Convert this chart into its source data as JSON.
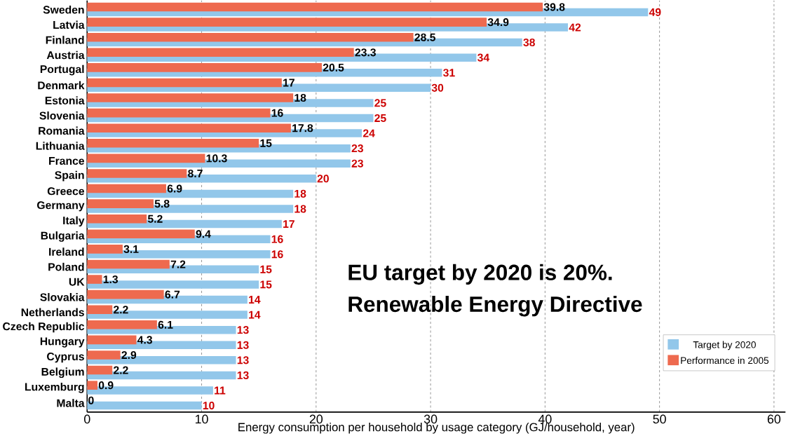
{
  "chart_data": {
    "type": "bar",
    "orientation": "horizontal",
    "title": "EU target by 2020 is 20%.",
    "subtitle": "Renewable Energy Directive",
    "xlabel": "Energy consumption per household by usage category (GJ/household, year)",
    "categories": [
      "Sweden",
      "Latvia",
      "Finland",
      "Austria",
      "Portugal",
      "Denmark",
      "Estonia",
      "Slovenia",
      "Romania",
      "Lithuania",
      "France",
      "Spain",
      "Greece",
      "Germany",
      "Italy",
      "Bulgaria",
      "Ireland",
      "Poland",
      "UK",
      "Slovakia",
      "Netherlands",
      "Czech Republic",
      "Hungary",
      "Cyprus",
      "Belgium",
      "Luxemburg",
      "Malta"
    ],
    "series": [
      {
        "name": "Performance in 2005",
        "color": "#ee6a4f",
        "values": [
          39.8,
          34.9,
          28.5,
          23.3,
          20.5,
          17,
          18,
          16,
          17.8,
          15,
          10.3,
          8.7,
          6.9,
          5.8,
          5.2,
          9.4,
          3.1,
          7.2,
          1.3,
          6.7,
          2.2,
          6.1,
          4.3,
          2.9,
          2.2,
          0.9,
          0
        ]
      },
      {
        "name": "Target by 2020",
        "color": "#92c7ea",
        "values": [
          49,
          42,
          38,
          34,
          31,
          30,
          25,
          25,
          24,
          23,
          23,
          20,
          18,
          18,
          17,
          16,
          16,
          15,
          15,
          14,
          14,
          13,
          13,
          13,
          13,
          11,
          10
        ]
      }
    ],
    "xlim": [
      0,
      61
    ],
    "xticks": [
      0,
      10,
      20,
      30,
      40,
      50,
      60
    ],
    "grid": "x",
    "legend": "bottom right",
    "data_labels": true
  }
}
